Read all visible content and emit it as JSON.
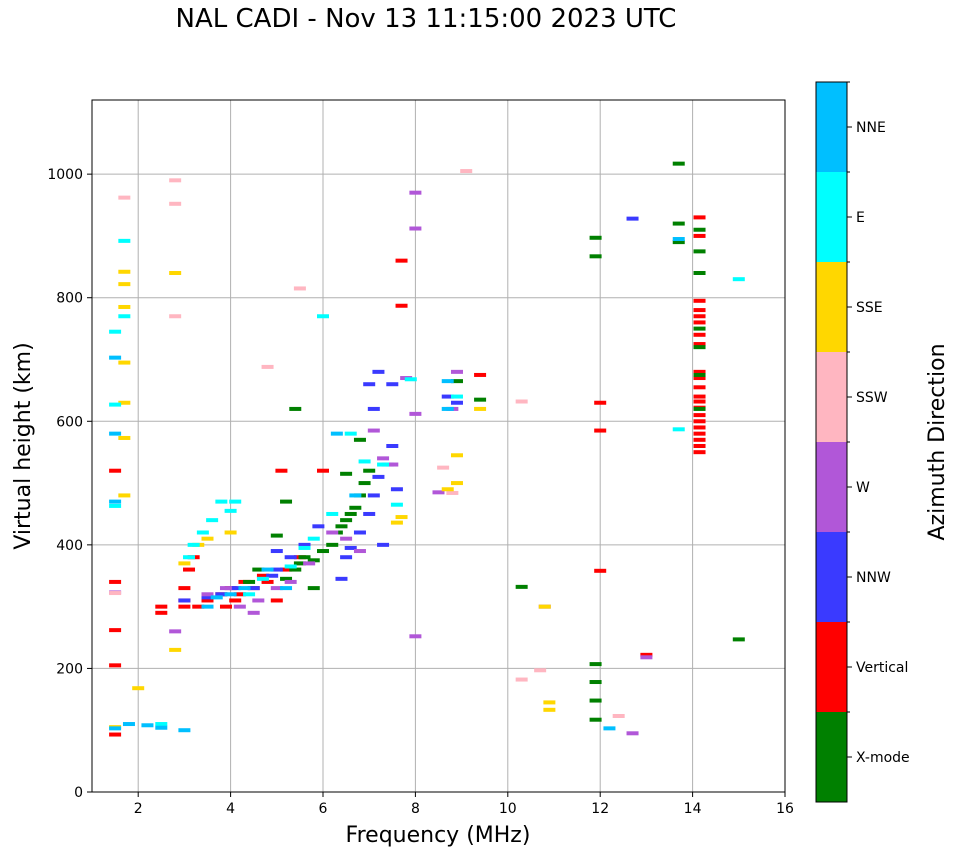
{
  "title": "NAL CADI - Nov 13 11:15:00 2023 UTC",
  "chart_data": {
    "type": "scatter",
    "title": "NAL CADI - Nov 13 11:15:00 2023 UTC",
    "xlabel": "Frequency (MHz)",
    "ylabel": "Virtual height (km)",
    "xlim": [
      1,
      16
    ],
    "ylim": [
      0,
      1120
    ],
    "xticks": [
      2,
      4,
      6,
      8,
      10,
      12,
      14,
      16
    ],
    "yticks": [
      0,
      200,
      400,
      600,
      800,
      1000
    ],
    "grid": true,
    "colorbar": {
      "label": "Azimuth Direction",
      "categories": [
        {
          "name": "X-mode",
          "color": "#008000"
        },
        {
          "name": "Vertical",
          "color": "#ff0000"
        },
        {
          "name": "NNW",
          "color": "#3a3aff"
        },
        {
          "name": "W",
          "color": "#b157d8"
        },
        {
          "name": "SSW",
          "color": "#ffb6c1"
        },
        {
          "name": "SSE",
          "color": "#ffd700"
        },
        {
          "name": "E",
          "color": "#00ffff"
        },
        {
          "name": "NNE",
          "color": "#00bfff"
        }
      ]
    },
    "series": [
      {
        "name": "Vertical",
        "points": [
          [
            1.5,
            93
          ],
          [
            1.5,
            262
          ],
          [
            1.5,
            205
          ],
          [
            1.5,
            340
          ],
          [
            1.5,
            520
          ],
          [
            2.5,
            300
          ],
          [
            2.5,
            290
          ],
          [
            3.0,
            300
          ],
          [
            3.0,
            310
          ],
          [
            3.0,
            330
          ],
          [
            3.1,
            360
          ],
          [
            3.2,
            380
          ],
          [
            3.3,
            300
          ],
          [
            3.5,
            310
          ],
          [
            3.8,
            320
          ],
          [
            3.9,
            300
          ],
          [
            4.0,
            330
          ],
          [
            4.1,
            310
          ],
          [
            4.2,
            320
          ],
          [
            4.3,
            340
          ],
          [
            4.5,
            330
          ],
          [
            4.7,
            350
          ],
          [
            4.8,
            340
          ],
          [
            5.0,
            310
          ],
          [
            5.1,
            520
          ],
          [
            5.2,
            360
          ],
          [
            5.5,
            380
          ],
          [
            6.0,
            520
          ],
          [
            7.7,
            860
          ],
          [
            7.7,
            787
          ],
          [
            9.4,
            675
          ],
          [
            12.0,
            630
          ],
          [
            12.0,
            585
          ],
          [
            12.0,
            358
          ],
          [
            13.0,
            222
          ],
          [
            14.15,
            930
          ],
          [
            14.15,
            900
          ],
          [
            14.15,
            795
          ],
          [
            14.15,
            780
          ],
          [
            14.15,
            770
          ],
          [
            14.15,
            760
          ],
          [
            14.15,
            740
          ],
          [
            14.15,
            725
          ],
          [
            14.15,
            680
          ],
          [
            14.15,
            670
          ],
          [
            14.15,
            655
          ],
          [
            14.15,
            640
          ],
          [
            14.15,
            632
          ],
          [
            14.15,
            622
          ],
          [
            14.15,
            610
          ],
          [
            14.15,
            600
          ],
          [
            14.15,
            590
          ],
          [
            14.15,
            580
          ],
          [
            14.15,
            570
          ],
          [
            14.15,
            560
          ],
          [
            14.15,
            550
          ]
        ]
      },
      {
        "name": "X-mode",
        "points": [
          [
            4.4,
            340
          ],
          [
            4.6,
            360
          ],
          [
            5.0,
            415
          ],
          [
            5.2,
            470
          ],
          [
            5.4,
            360
          ],
          [
            5.5,
            370
          ],
          [
            5.6,
            380
          ],
          [
            5.8,
            375
          ],
          [
            6.0,
            390
          ],
          [
            6.2,
            400
          ],
          [
            6.3,
            420
          ],
          [
            6.4,
            430
          ],
          [
            6.5,
            440
          ],
          [
            6.6,
            450
          ],
          [
            6.7,
            460
          ],
          [
            6.8,
            480
          ],
          [
            6.9,
            500
          ],
          [
            7.0,
            520
          ],
          [
            6.5,
            515
          ],
          [
            5.2,
            345
          ],
          [
            5.8,
            330
          ],
          [
            6.8,
            570
          ],
          [
            9.4,
            635
          ],
          [
            8.9,
            665
          ],
          [
            10.3,
            332
          ],
          [
            11.9,
            897
          ],
          [
            11.9,
            867
          ],
          [
            11.9,
            207
          ],
          [
            11.9,
            178
          ],
          [
            11.9,
            148
          ],
          [
            11.9,
            117
          ],
          [
            13.7,
            1017
          ],
          [
            13.7,
            920
          ],
          [
            13.7,
            890
          ],
          [
            14.15,
            910
          ],
          [
            14.15,
            875
          ],
          [
            14.15,
            840
          ],
          [
            14.15,
            750
          ],
          [
            14.15,
            720
          ],
          [
            14.15,
            675
          ],
          [
            14.15,
            620
          ],
          [
            15.0,
            247
          ],
          [
            5.4,
            620
          ]
        ]
      },
      {
        "name": "NNW",
        "points": [
          [
            3.0,
            310
          ],
          [
            3.5,
            315
          ],
          [
            3.8,
            320
          ],
          [
            4.1,
            330
          ],
          [
            4.5,
            330
          ],
          [
            4.9,
            350
          ],
          [
            5.0,
            360
          ],
          [
            5.3,
            380
          ],
          [
            5.6,
            400
          ],
          [
            5.9,
            430
          ],
          [
            6.4,
            345
          ],
          [
            6.6,
            395
          ],
          [
            6.8,
            420
          ],
          [
            7.0,
            450
          ],
          [
            7.1,
            480
          ],
          [
            7.2,
            510
          ],
          [
            7.4,
            530
          ],
          [
            7.5,
            560
          ],
          [
            7.6,
            490
          ],
          [
            7.3,
            400
          ],
          [
            7.1,
            620
          ],
          [
            7.2,
            680
          ],
          [
            7.0,
            660
          ],
          [
            7.5,
            660
          ],
          [
            8.7,
            640
          ],
          [
            8.9,
            630
          ],
          [
            12.7,
            928
          ],
          [
            5.0,
            390
          ],
          [
            6.5,
            380
          ]
        ]
      },
      {
        "name": "W",
        "points": [
          [
            3.5,
            320
          ],
          [
            3.9,
            330
          ],
          [
            4.2,
            300
          ],
          [
            4.5,
            290
          ],
          [
            4.6,
            310
          ],
          [
            5.0,
            330
          ],
          [
            5.3,
            340
          ],
          [
            5.7,
            370
          ],
          [
            6.2,
            420
          ],
          [
            6.5,
            410
          ],
          [
            6.8,
            390
          ],
          [
            7.3,
            540
          ],
          [
            7.5,
            530
          ],
          [
            7.1,
            585
          ],
          [
            7.8,
            670
          ],
          [
            8.0,
            970
          ],
          [
            8.0,
            912
          ],
          [
            8.0,
            612
          ],
          [
            8.0,
            252
          ],
          [
            8.9,
            680
          ],
          [
            8.5,
            485
          ],
          [
            8.8,
            620
          ],
          [
            10.8,
            300
          ],
          [
            12.7,
            95
          ],
          [
            13.0,
            218
          ],
          [
            1.5,
            323
          ],
          [
            2.8,
            260
          ]
        ]
      },
      {
        "name": "SSW",
        "points": [
          [
            1.5,
            322
          ],
          [
            1.7,
            962
          ],
          [
            2.8,
            990
          ],
          [
            2.8,
            952
          ],
          [
            2.8,
            770
          ],
          [
            4.8,
            688
          ],
          [
            5.5,
            815
          ],
          [
            9.1,
            1005
          ],
          [
            8.6,
            525
          ],
          [
            8.8,
            484
          ],
          [
            10.3,
            632
          ],
          [
            10.3,
            182
          ],
          [
            10.7,
            197
          ],
          [
            12.4,
            123
          ]
        ]
      },
      {
        "name": "SSE",
        "points": [
          [
            1.5,
            105
          ],
          [
            1.7,
            842
          ],
          [
            1.7,
            822
          ],
          [
            1.7,
            785
          ],
          [
            1.7,
            695
          ],
          [
            2.0,
            168
          ],
          [
            2.8,
            840
          ],
          [
            2.8,
            230
          ],
          [
            3.0,
            370
          ],
          [
            3.3,
            400
          ],
          [
            3.5,
            410
          ],
          [
            4.0,
            420
          ],
          [
            7.7,
            445
          ],
          [
            7.6,
            436
          ],
          [
            8.7,
            490
          ],
          [
            8.9,
            545
          ],
          [
            8.9,
            500
          ],
          [
            9.4,
            620
          ],
          [
            10.8,
            300
          ],
          [
            10.9,
            145
          ],
          [
            10.9,
            133
          ],
          [
            1.7,
            573
          ],
          [
            1.7,
            630
          ],
          [
            1.7,
            480
          ]
        ]
      },
      {
        "name": "E",
        "points": [
          [
            1.5,
            745
          ],
          [
            1.5,
            627
          ],
          [
            1.5,
            463
          ],
          [
            1.7,
            892
          ],
          [
            1.7,
            770
          ],
          [
            2.5,
            110
          ],
          [
            3.1,
            380
          ],
          [
            3.2,
            400
          ],
          [
            3.4,
            420
          ],
          [
            3.6,
            440
          ],
          [
            3.8,
            470
          ],
          [
            4.0,
            455
          ],
          [
            4.1,
            470
          ],
          [
            4.4,
            320
          ],
          [
            4.7,
            345
          ],
          [
            5.3,
            365
          ],
          [
            5.6,
            395
          ],
          [
            5.8,
            410
          ],
          [
            6.0,
            770
          ],
          [
            6.2,
            450
          ],
          [
            6.6,
            580
          ],
          [
            6.9,
            535
          ],
          [
            7.3,
            530
          ],
          [
            7.6,
            465
          ],
          [
            7.9,
            668
          ],
          [
            8.9,
            640
          ],
          [
            13.7,
            587
          ],
          [
            15.0,
            830
          ]
        ]
      },
      {
        "name": "NNE",
        "points": [
          [
            1.5,
            703
          ],
          [
            1.5,
            580
          ],
          [
            1.5,
            470
          ],
          [
            1.5,
            103
          ],
          [
            1.8,
            110
          ],
          [
            2.2,
            108
          ],
          [
            2.5,
            104
          ],
          [
            3.0,
            100
          ],
          [
            3.5,
            300
          ],
          [
            3.7,
            315
          ],
          [
            4.0,
            320
          ],
          [
            4.3,
            330
          ],
          [
            4.8,
            360
          ],
          [
            5.2,
            330
          ],
          [
            6.3,
            580
          ],
          [
            6.7,
            480
          ],
          [
            8.7,
            665
          ],
          [
            8.7,
            620
          ],
          [
            12.2,
            103
          ],
          [
            13.7,
            895
          ]
        ]
      }
    ]
  }
}
